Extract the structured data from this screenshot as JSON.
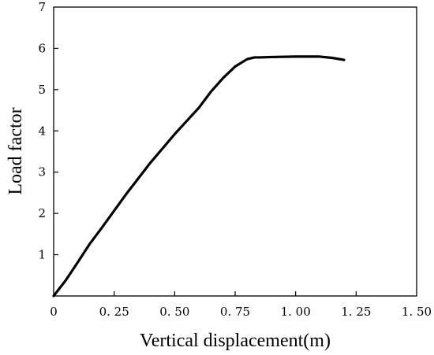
{
  "chart_data": {
    "type": "line",
    "title": "",
    "xlabel": "Vertical displacement(m)",
    "ylabel": "Load factor",
    "xlim": [
      0,
      1.5
    ],
    "ylim": [
      0,
      7
    ],
    "xticks": [
      0,
      0.25,
      0.5,
      0.75,
      1.0,
      1.25,
      1.5
    ],
    "yticks": [
      1,
      2,
      3,
      4,
      5,
      6,
      7
    ],
    "xtick_labels": [
      "0",
      "0. 25",
      "0. 50",
      "0. 75",
      "1. 00",
      "1. 25",
      "1. 50"
    ],
    "ytick_labels": [
      "1",
      "2",
      "3",
      "4",
      "5",
      "6",
      "7"
    ],
    "grid": false,
    "legend": "none",
    "line_color": "#000000",
    "series": [
      {
        "x": [
          0,
          0.05,
          0.1,
          0.15,
          0.2,
          0.3,
          0.4,
          0.5,
          0.6,
          0.65,
          0.7,
          0.75,
          0.8,
          0.83,
          0.85,
          0.9,
          1.0,
          1.1,
          1.15,
          1.2
        ],
        "y": [
          0,
          0.38,
          0.82,
          1.27,
          1.66,
          2.47,
          3.23,
          3.92,
          4.56,
          4.95,
          5.28,
          5.56,
          5.74,
          5.78,
          5.78,
          5.79,
          5.8,
          5.8,
          5.77,
          5.72
        ]
      }
    ]
  }
}
